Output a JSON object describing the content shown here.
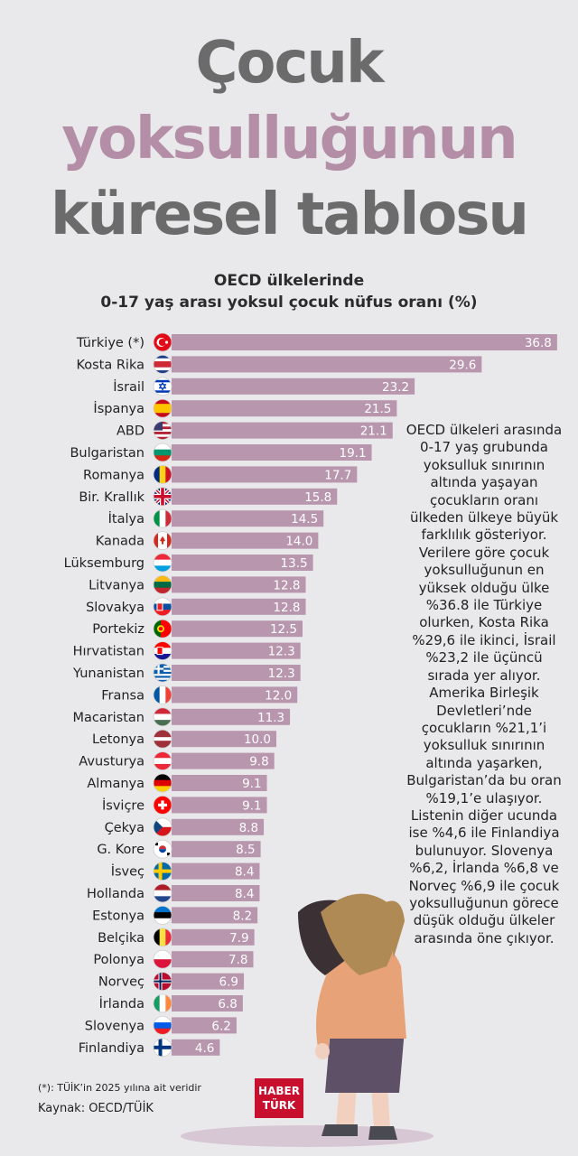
{
  "title": {
    "line1": "Çocuk",
    "line2": "yoksulluğunun",
    "line3": "küresel tablosu"
  },
  "subtitle": {
    "line1": "OECD ülkelerinde",
    "line2": "0-17 yaş arası yoksul çocuk nüfus oranı (%)"
  },
  "chart_data": {
    "type": "bar",
    "orientation": "horizontal",
    "bar_color": "#b896ad",
    "ylabel": "",
    "xlabel": "",
    "categories": [
      "Türkiye (*)",
      "Kosta Rika",
      "İsrail",
      "İspanya",
      "ABD",
      "Bulgaristan",
      "Romanya",
      "Bir. Krallık",
      "İtalya",
      "Kanada",
      "Lüksemburg",
      "Litvanya",
      "Slovakya",
      "Portekiz",
      "Hırvatistan",
      "Yunanistan",
      "Fransa",
      "Macaristan",
      "Letonya",
      "Avusturya",
      "Almanya",
      "İsviçre",
      "Çekya",
      "G. Kore",
      "İsveç",
      "Hollanda",
      "Estonya",
      "Belçika",
      "Polonya",
      "Norveç",
      "İrlanda",
      "Slovenya",
      "Finlandiya"
    ],
    "values": [
      36.8,
      29.6,
      23.2,
      21.5,
      21.1,
      19.1,
      17.7,
      15.8,
      14.5,
      14.0,
      13.5,
      12.8,
      12.8,
      12.5,
      12.3,
      12.3,
      12.0,
      11.3,
      10.0,
      9.8,
      9.1,
      9.1,
      8.8,
      8.5,
      8.4,
      8.4,
      8.2,
      7.9,
      7.8,
      6.9,
      6.8,
      6.2,
      4.6
    ],
    "value_labels": [
      "36.8",
      "29.6",
      "23.2",
      "21.5",
      "21.1",
      "19.1",
      "17.7",
      "15.8",
      "14.5",
      "14.0",
      "13.5",
      "12.8",
      "12.8",
      "12.5",
      "12.3",
      "12.3",
      "12.0",
      "11.3",
      "10.0",
      "9.8",
      "9.1",
      "9.1",
      "8.8",
      "8.5",
      "8.4",
      "8.4",
      "8.2",
      "7.9",
      "7.8",
      "6.9",
      "6.8",
      "6.2",
      "4.6"
    ],
    "flag_icons": [
      "turkey-flag-icon",
      "costa-rica-flag-icon",
      "israel-flag-icon",
      "spain-flag-icon",
      "usa-flag-icon",
      "bulgaria-flag-icon",
      "romania-flag-icon",
      "uk-flag-icon",
      "italy-flag-icon",
      "canada-flag-icon",
      "luxembourg-flag-icon",
      "lithuania-flag-icon",
      "slovakia-flag-icon",
      "portugal-flag-icon",
      "croatia-flag-icon",
      "greece-flag-icon",
      "france-flag-icon",
      "hungary-flag-icon",
      "latvia-flag-icon",
      "austria-flag-icon",
      "germany-flag-icon",
      "switzerland-flag-icon",
      "czechia-flag-icon",
      "south-korea-flag-icon",
      "sweden-flag-icon",
      "netherlands-flag-icon",
      "estonia-flag-icon",
      "belgium-flag-icon",
      "poland-flag-icon",
      "norway-flag-icon",
      "ireland-flag-icon",
      "slovenia-flag-icon",
      "finland-flag-icon"
    ]
  },
  "note": "OECD ülkeleri arasında 0-17 yaş grubunda yoksulluk sınırının altında yaşayan çocukların oranı ülkeden ülkeye büyük farklılık gösteriyor. Verilere göre çocuk yoksulluğunun en yüksek olduğu ülke %36.8 ile Türkiye olurken, Kosta Rika %29,6 ile ikinci, İsrail %23,2 ile üçüncü sırada yer alıyor. Amerika Birleşik Devletleri’nde çocukların %21,1’i yoksulluk sınırının altında yaşarken, Bulgaristan’da bu oran %19,1’e ulaşıyor. Listenin diğer ucunda ise %4,6 ile Finlandiya bulunuyor. Slovenya %6,2, İrlanda %6,8 ve Norveç %6,9 ile çocuk yoksulluğunun görece düşük olduğu ülkeler arasında öne çıkıyor.",
  "footnote": "(*): TÜİK’in 2025 yılına ait veridir",
  "source": "Kaynak: OECD/TÜİK",
  "logo": {
    "line1": "HABER",
    "line2": "TÜRK"
  },
  "colors": {
    "title_gray": "#6b6b6b",
    "title_pink": "#b48ea6",
    "bar": "#b896ad",
    "background": "#e9e8ea",
    "logo_red": "#c8102e"
  },
  "illustration": "sad-girl-illustration"
}
